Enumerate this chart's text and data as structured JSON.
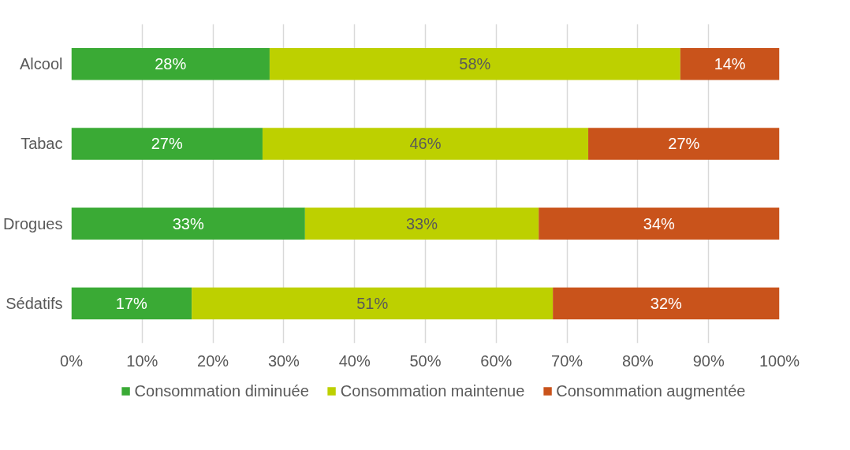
{
  "chart_data": {
    "type": "bar",
    "orientation": "horizontal",
    "stacked": true,
    "categories": [
      "Alcool",
      "Tabac",
      "Drogues",
      "Sédatifs"
    ],
    "series": [
      {
        "name": "Consommation diminuée",
        "color": "#3aaa35",
        "values": [
          28,
          27,
          33,
          17
        ],
        "value_labels": [
          "28%",
          "27%",
          "33%",
          "17%"
        ]
      },
      {
        "name": "Consommation maintenue",
        "color": "#bdd000",
        "values": [
          58,
          46,
          33,
          51
        ],
        "value_labels": [
          "58%",
          "46%",
          "33%",
          "51%"
        ]
      },
      {
        "name": "Consommation augmentée",
        "color": "#c9531b",
        "values": [
          14,
          27,
          34,
          32
        ],
        "value_labels": [
          "14%",
          "27%",
          "34%",
          "32%"
        ]
      }
    ],
    "xlim": [
      0,
      100
    ],
    "xticks": [
      {
        "value": 0,
        "label": "0%"
      },
      {
        "value": 10,
        "label": "10%"
      },
      {
        "value": 20,
        "label": "20%"
      },
      {
        "value": 30,
        "label": "30%"
      },
      {
        "value": 40,
        "label": "40%"
      },
      {
        "value": 50,
        "label": "50%"
      },
      {
        "value": 60,
        "label": "60%"
      },
      {
        "value": 70,
        "label": "70%"
      },
      {
        "value": 80,
        "label": "80%"
      },
      {
        "value": 90,
        "label": "90%"
      },
      {
        "value": 100,
        "label": "100%"
      }
    ],
    "grid": "x",
    "legend": "bottom"
  }
}
